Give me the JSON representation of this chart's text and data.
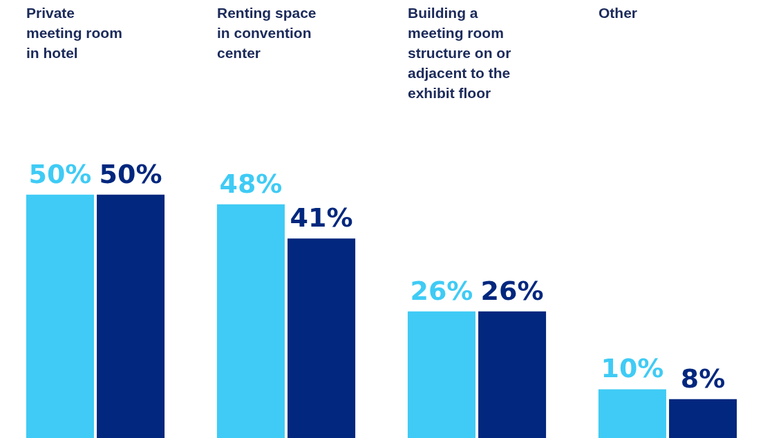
{
  "chart_data": {
    "type": "bar",
    "categories": [
      "Private meeting room in hotel",
      "Renting space in convention center",
      "Building a meeting room structure on or adjacent to the exhibit floor",
      "Other"
    ],
    "series": [
      {
        "color": "#3fcbf5",
        "values": [
          50,
          48,
          26,
          10
        ],
        "value_labels": [
          "50%",
          "48%",
          "26%",
          "10%"
        ]
      },
      {
        "color": "#01277e",
        "values": [
          50,
          41,
          26,
          8
        ],
        "value_labels": [
          "50%",
          "41%",
          "26%",
          "8%"
        ]
      }
    ]
  }
}
